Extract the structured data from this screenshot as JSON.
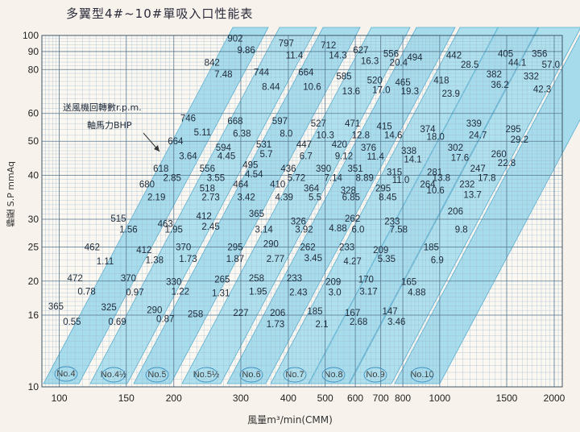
{
  "title": "多翼型4#~10#單吸入口性能表",
  "chart_data": {
    "type": "scatter",
    "title": "多翼型4#~10#單吸入口性能表",
    "xlabel": "風量m³/min(CMM)",
    "ylabel": "靜壓 S.P mmAq",
    "x_scale": "log",
    "y_scale": "log",
    "xlim": [
      90,
      2100
    ],
    "ylim": [
      10,
      100
    ],
    "x_ticks": [
      100,
      150,
      200,
      300,
      400,
      500,
      600,
      700,
      800,
      1000,
      1500,
      2000
    ],
    "y_ticks": [
      10,
      16,
      20,
      25,
      30,
      40,
      50,
      60,
      80,
      90,
      100
    ],
    "grid": true,
    "legend": {
      "rpm_label": "送風機回轉數r.p.m.",
      "bhp_label": "軸馬力BHP"
    },
    "bands": [
      "No.4",
      "No.4½",
      "No.5",
      "No.5½",
      "No.6",
      "No.7",
      "No.8",
      "No.9",
      "No.10"
    ],
    "rpm_points": [
      {
        "t": "902",
        "x": 290,
        "y": 96
      },
      {
        "t": "797",
        "x": 395,
        "y": 93
      },
      {
        "t": "712",
        "x": 510,
        "y": 92
      },
      {
        "t": "627",
        "x": 620,
        "y": 89
      },
      {
        "t": "556",
        "x": 745,
        "y": 87
      },
      {
        "t": "494",
        "x": 860,
        "y": 85
      },
      {
        "t": "442",
        "x": 1090,
        "y": 86
      },
      {
        "t": "405",
        "x": 1490,
        "y": 87
      },
      {
        "t": "356",
        "x": 1830,
        "y": 87
      },
      {
        "t": "842",
        "x": 252,
        "y": 82
      },
      {
        "t": "744",
        "x": 340,
        "y": 77
      },
      {
        "t": "664",
        "x": 445,
        "y": 77
      },
      {
        "t": "585",
        "x": 560,
        "y": 75
      },
      {
        "t": "520",
        "x": 675,
        "y": 73
      },
      {
        "t": "465",
        "x": 800,
        "y": 72
      },
      {
        "t": "418",
        "x": 1010,
        "y": 73
      },
      {
        "t": "382",
        "x": 1390,
        "y": 76
      },
      {
        "t": "332",
        "x": 1740,
        "y": 75
      },
      {
        "t": "746",
        "x": 218,
        "y": 57
      },
      {
        "t": "668",
        "x": 290,
        "y": 56
      },
      {
        "t": "597",
        "x": 380,
        "y": 56
      },
      {
        "t": "527",
        "x": 480,
        "y": 55
      },
      {
        "t": "471",
        "x": 590,
        "y": 55
      },
      {
        "t": "415",
        "x": 715,
        "y": 54
      },
      {
        "t": "374",
        "x": 930,
        "y": 53
      },
      {
        "t": "339",
        "x": 1230,
        "y": 55
      },
      {
        "t": "295",
        "x": 1560,
        "y": 53
      },
      {
        "t": "664",
        "x": 202,
        "y": 49
      },
      {
        "t": "594",
        "x": 270,
        "y": 47
      },
      {
        "t": "531",
        "x": 345,
        "y": 48
      },
      {
        "t": "447",
        "x": 440,
        "y": 48
      },
      {
        "t": "420",
        "x": 545,
        "y": 48
      },
      {
        "t": "376",
        "x": 650,
        "y": 47
      },
      {
        "t": "338",
        "x": 830,
        "y": 46
      },
      {
        "t": "302",
        "x": 1100,
        "y": 47
      },
      {
        "t": "260",
        "x": 1430,
        "y": 45
      },
      {
        "t": "618",
        "x": 185,
        "y": 41
      },
      {
        "t": "556",
        "x": 245,
        "y": 41
      },
      {
        "t": "495",
        "x": 318,
        "y": 42
      },
      {
        "t": "436",
        "x": 400,
        "y": 41
      },
      {
        "t": "390",
        "x": 495,
        "y": 41
      },
      {
        "t": "351",
        "x": 600,
        "y": 41
      },
      {
        "t": "315",
        "x": 760,
        "y": 40
      },
      {
        "t": "281",
        "x": 970,
        "y": 40
      },
      {
        "t": "247",
        "x": 1260,
        "y": 41
      },
      {
        "t": "680",
        "x": 170,
        "y": 37
      },
      {
        "t": "518",
        "x": 245,
        "y": 36
      },
      {
        "t": "464",
        "x": 300,
        "y": 37
      },
      {
        "t": "410",
        "x": 375,
        "y": 37
      },
      {
        "t": "364",
        "x": 460,
        "y": 36
      },
      {
        "t": "328",
        "x": 575,
        "y": 35.5
      },
      {
        "t": "295",
        "x": 710,
        "y": 36
      },
      {
        "t": "264",
        "x": 930,
        "y": 37
      },
      {
        "t": "232",
        "x": 1180,
        "y": 37
      },
      {
        "t": "515",
        "x": 143,
        "y": 29.5
      },
      {
        "t": "463",
        "x": 190,
        "y": 28.5
      },
      {
        "t": "412",
        "x": 240,
        "y": 30
      },
      {
        "t": "365",
        "x": 330,
        "y": 30.5
      },
      {
        "t": "326",
        "x": 425,
        "y": 29
      },
      {
        "t": "262",
        "x": 590,
        "y": 29.5
      },
      {
        "t": "233",
        "x": 750,
        "y": 29
      },
      {
        "t": "206",
        "x": 1100,
        "y": 31
      },
      {
        "t": "462",
        "x": 122,
        "y": 24.5
      },
      {
        "t": "412",
        "x": 167,
        "y": 24
      },
      {
        "t": "370",
        "x": 212,
        "y": 24.5
      },
      {
        "t": "295",
        "x": 290,
        "y": 24.5
      },
      {
        "t": "290",
        "x": 360,
        "y": 25
      },
      {
        "t": "262",
        "x": 450,
        "y": 24.5
      },
      {
        "t": "233",
        "x": 570,
        "y": 24.5
      },
      {
        "t": "209",
        "x": 700,
        "y": 24
      },
      {
        "t": "185",
        "x": 950,
        "y": 24.5
      },
      {
        "t": "472",
        "x": 110,
        "y": 20
      },
      {
        "t": "370",
        "x": 152,
        "y": 20
      },
      {
        "t": "330",
        "x": 200,
        "y": 19.5
      },
      {
        "t": "265",
        "x": 268,
        "y": 19.8
      },
      {
        "t": "258",
        "x": 330,
        "y": 20
      },
      {
        "t": "233",
        "x": 415,
        "y": 20
      },
      {
        "t": "209",
        "x": 525,
        "y": 19.5
      },
      {
        "t": "170",
        "x": 640,
        "y": 19.8
      },
      {
        "t": "165",
        "x": 830,
        "y": 19.5
      },
      {
        "t": "365",
        "x": 98,
        "y": 16.6
      },
      {
        "t": "325",
        "x": 135,
        "y": 16.5
      },
      {
        "t": "290",
        "x": 178,
        "y": 16.2
      },
      {
        "t": "258",
        "x": 228,
        "y": 15.8
      },
      {
        "t": "227",
        "x": 300,
        "y": 15.9
      },
      {
        "t": "206",
        "x": 375,
        "y": 15.9
      },
      {
        "t": "185",
        "x": 470,
        "y": 16.1
      },
      {
        "t": "167",
        "x": 590,
        "y": 15.9
      },
      {
        "t": "147",
        "x": 740,
        "y": 16.1
      }
    ],
    "bhp_points": [
      {
        "t": "9.86",
        "x": 310,
        "y": 89
      },
      {
        "t": "11.4",
        "x": 415,
        "y": 86
      },
      {
        "t": "14.3",
        "x": 540,
        "y": 86
      },
      {
        "t": "16.3",
        "x": 655,
        "y": 83
      },
      {
        "t": "20.4",
        "x": 780,
        "y": 82
      },
      {
        "t": "28.5",
        "x": 1200,
        "y": 81
      },
      {
        "t": "44.1",
        "x": 1600,
        "y": 82
      },
      {
        "t": "57.0",
        "x": 1960,
        "y": 81
      },
      {
        "t": "7.48",
        "x": 270,
        "y": 76
      },
      {
        "t": "8.44",
        "x": 360,
        "y": 70
      },
      {
        "t": "10.6",
        "x": 462,
        "y": 70
      },
      {
        "t": "13.6",
        "x": 585,
        "y": 68
      },
      {
        "t": "17.0",
        "x": 702,
        "y": 68.5
      },
      {
        "t": "19.3",
        "x": 835,
        "y": 68
      },
      {
        "t": "23.9",
        "x": 1070,
        "y": 67
      },
      {
        "t": "36.2",
        "x": 1440,
        "y": 71
      },
      {
        "t": "42.3",
        "x": 1860,
        "y": 69
      },
      {
        "t": "5.11",
        "x": 238,
        "y": 52
      },
      {
        "t": "6.38",
        "x": 302,
        "y": 51.5
      },
      {
        "t": "8.0",
        "x": 395,
        "y": 51.5
      },
      {
        "t": "10.3",
        "x": 500,
        "y": 51
      },
      {
        "t": "12.8",
        "x": 620,
        "y": 51
      },
      {
        "t": "14.6",
        "x": 755,
        "y": 51
      },
      {
        "t": "18.0",
        "x": 975,
        "y": 50.5
      },
      {
        "t": "24.7",
        "x": 1260,
        "y": 51
      },
      {
        "t": "29.2",
        "x": 1620,
        "y": 49.5
      },
      {
        "t": "3.64",
        "x": 218,
        "y": 44.5
      },
      {
        "t": "4.45",
        "x": 275,
        "y": 44.5
      },
      {
        "t": "5.7",
        "x": 350,
        "y": 45
      },
      {
        "t": "6.7",
        "x": 445,
        "y": 44.5
      },
      {
        "t": "9.12",
        "x": 560,
        "y": 44.5
      },
      {
        "t": "11.4",
        "x": 678,
        "y": 44.3
      },
      {
        "t": "14.1",
        "x": 850,
        "y": 43.5
      },
      {
        "t": "17.6",
        "x": 1130,
        "y": 44
      },
      {
        "t": "22.8",
        "x": 1500,
        "y": 42.5
      },
      {
        "t": "2.85",
        "x": 198,
        "y": 38.5
      },
      {
        "t": "3.55",
        "x": 258,
        "y": 38.5
      },
      {
        "t": "4.54",
        "x": 325,
        "y": 39.5
      },
      {
        "t": "5.72",
        "x": 420,
        "y": 38.5
      },
      {
        "t": "7.14",
        "x": 525,
        "y": 38.5
      },
      {
        "t": "8.89",
        "x": 635,
        "y": 38.5
      },
      {
        "t": "11.0",
        "x": 790,
        "y": 38
      },
      {
        "t": "13.8",
        "x": 1010,
        "y": 38.5
      },
      {
        "t": "17.8",
        "x": 1330,
        "y": 38.5
      },
      {
        "t": "2.19",
        "x": 180,
        "y": 34
      },
      {
        "t": "2.73",
        "x": 250,
        "y": 34
      },
      {
        "t": "3.42",
        "x": 310,
        "y": 34
      },
      {
        "t": "4.39",
        "x": 390,
        "y": 34
      },
      {
        "t": "5.5",
        "x": 470,
        "y": 34
      },
      {
        "t": "6.85",
        "x": 585,
        "y": 34
      },
      {
        "t": "8.45",
        "x": 730,
        "y": 34
      },
      {
        "t": "10.6",
        "x": 975,
        "y": 35.5
      },
      {
        "t": "13.7",
        "x": 1220,
        "y": 34.5
      },
      {
        "t": "1.56",
        "x": 152,
        "y": 27.5
      },
      {
        "t": "1.95",
        "x": 200,
        "y": 27.5
      },
      {
        "t": "2.45",
        "x": 250,
        "y": 28
      },
      {
        "t": "3.14",
        "x": 345,
        "y": 27.5
      },
      {
        "t": "3.92",
        "x": 440,
        "y": 27.5
      },
      {
        "t": "4.88",
        "x": 540,
        "y": 27.7
      },
      {
        "t": "6.0",
        "x": 610,
        "y": 27.5
      },
      {
        "t": "7.58",
        "x": 780,
        "y": 27.5
      },
      {
        "t": "9.8",
        "x": 1140,
        "y": 27.5
      },
      {
        "t": "1.11",
        "x": 132,
        "y": 22.3
      },
      {
        "t": "1.38",
        "x": 178,
        "y": 22.5
      },
      {
        "t": "1.73",
        "x": 218,
        "y": 22.7
      },
      {
        "t": "1.87",
        "x": 290,
        "y": 22.7
      },
      {
        "t": "2.77",
        "x": 370,
        "y": 22.7
      },
      {
        "t": "3.45",
        "x": 465,
        "y": 22.8
      },
      {
        "t": "4.27",
        "x": 590,
        "y": 22.3
      },
      {
        "t": "5.35",
        "x": 725,
        "y": 22.7
      },
      {
        "t": "6.9",
        "x": 985,
        "y": 22.5
      },
      {
        "t": "0.78",
        "x": 118,
        "y": 18.3
      },
      {
        "t": "0.97",
        "x": 158,
        "y": 18.2
      },
      {
        "t": "1.22",
        "x": 208,
        "y": 18.3
      },
      {
        "t": "1.31",
        "x": 266,
        "y": 18.1
      },
      {
        "t": "1.95",
        "x": 333,
        "y": 18.3
      },
      {
        "t": "2.43",
        "x": 425,
        "y": 18.2
      },
      {
        "t": "3.0",
        "x": 530,
        "y": 18.2
      },
      {
        "t": "3.17",
        "x": 650,
        "y": 18.3
      },
      {
        "t": "4.88",
        "x": 870,
        "y": 18.2
      },
      {
        "t": "0.55",
        "x": 108,
        "y": 15
      },
      {
        "t": "0.69",
        "x": 142,
        "y": 15
      },
      {
        "t": "0.87",
        "x": 190,
        "y": 15.3
      },
      {
        "t": "1.73",
        "x": 370,
        "y": 14.8
      },
      {
        "t": "2.1",
        "x": 490,
        "y": 14.8
      },
      {
        "t": "2.68",
        "x": 612,
        "y": 15
      },
      {
        "t": "3.46",
        "x": 770,
        "y": 15
      }
    ]
  }
}
